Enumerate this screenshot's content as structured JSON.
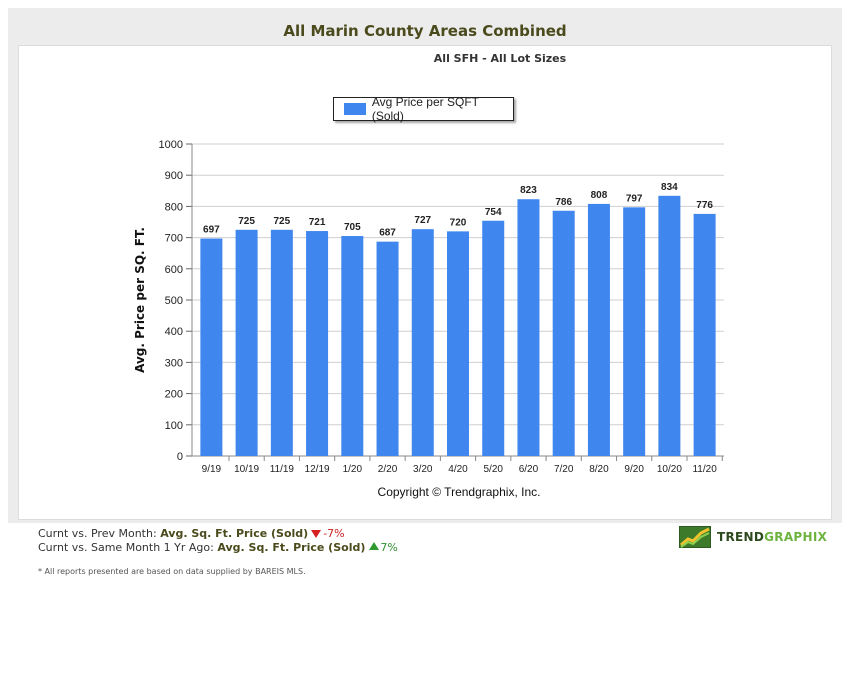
{
  "header": {
    "title": "All Marin County Areas Combined",
    "subtitle": "All SFH - All Lot Sizes"
  },
  "chart_data": {
    "type": "bar",
    "categories": [
      "9/19",
      "10/19",
      "11/19",
      "12/19",
      "1/20",
      "2/20",
      "3/20",
      "4/20",
      "5/20",
      "6/20",
      "7/20",
      "8/20",
      "9/20",
      "10/20",
      "11/20"
    ],
    "series": [
      {
        "name": "Avg Price per SQFT (Sold)",
        "values": [
          697,
          725,
          725,
          721,
          705,
          687,
          727,
          720,
          754,
          823,
          786,
          808,
          797,
          834,
          776
        ]
      }
    ],
    "ylabel": "Avg. Price per SQ. FT.",
    "xlabel": "Copyright © Trendgraphix, Inc.",
    "ylim": [
      0,
      1000
    ],
    "yticks": [
      0,
      100,
      200,
      300,
      400,
      500,
      600,
      700,
      800,
      900,
      1000
    ],
    "grid": true,
    "legend_position": "top-center",
    "bar_color": "#3f86ee",
    "grid_color": "#cfcfcf"
  },
  "footer": {
    "line1_prefix": "Curnt vs. Prev Month:",
    "line1_metric": "Avg. Sq. Ft. Price (Sold)",
    "line1_change": "-7%",
    "line1_direction": "down",
    "line2_prefix": "Curnt vs. Same Month 1 Yr Ago:",
    "line2_metric": "Avg. Sq. Ft. Price (Sold)",
    "line2_change": "7%",
    "line2_direction": "up",
    "disclaimer": "* All reports presented are based on data supplied by BAREIS MLS."
  },
  "brand": {
    "name_part1": "TREND",
    "name_part2": "GRAPHIX",
    "logo_icon": "trend-chart-logo-icon"
  }
}
